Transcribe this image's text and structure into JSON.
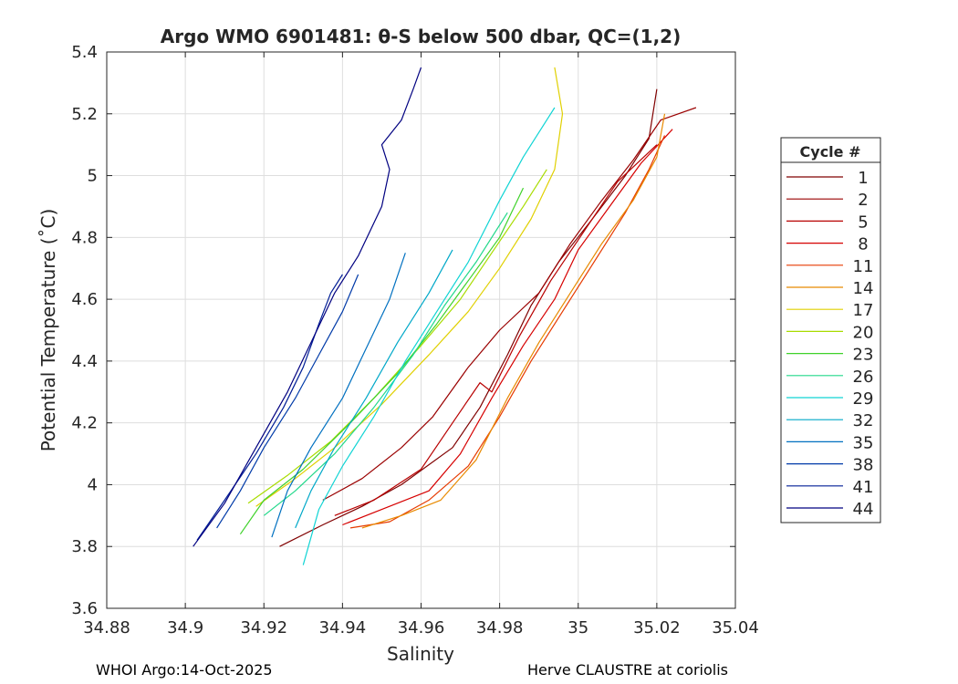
{
  "chart_data": {
    "type": "line",
    "title": "Argo WMO 6901481: θ-S below 500 dbar,  QC=(1,2)",
    "xlabel": "Salinity",
    "ylabel": "Potential Temperature (˚C)",
    "xlim": [
      34.88,
      35.04
    ],
    "ylim": [
      3.6,
      5.4
    ],
    "xticks": [
      34.88,
      34.9,
      34.92,
      34.94,
      34.96,
      34.98,
      35,
      35.02,
      35.04
    ],
    "xtick_labels": [
      "34.88",
      "34.9",
      "34.92",
      "34.94",
      "34.96",
      "34.98",
      "35",
      "35.02",
      "35.04"
    ],
    "yticks": [
      3.6,
      3.8,
      4,
      4.2,
      4.4,
      4.6,
      4.8,
      5,
      5.2,
      5.4
    ],
    "ytick_labels": [
      "3.6",
      "3.8",
      "4",
      "4.2",
      "4.4",
      "4.6",
      "4.8",
      "5",
      "5.2",
      "5.4"
    ],
    "grid": true,
    "legend_title": "Cycle #",
    "legend_position": "right",
    "series": [
      {
        "name": "1",
        "color": "#800000",
        "points": [
          [
            34.924,
            3.8
          ],
          [
            34.935,
            3.87
          ],
          [
            34.945,
            3.93
          ],
          [
            34.955,
            4.0
          ],
          [
            34.968,
            4.12
          ],
          [
            34.975,
            4.25
          ],
          [
            34.982,
            4.42
          ],
          [
            34.988,
            4.58
          ],
          [
            34.995,
            4.72
          ],
          [
            35.003,
            4.85
          ],
          [
            35.012,
            5.0
          ],
          [
            35.018,
            5.12
          ],
          [
            35.02,
            5.28
          ]
        ]
      },
      {
        "name": "2",
        "color": "#9a0000",
        "points": [
          [
            34.935,
            3.95
          ],
          [
            34.945,
            4.02
          ],
          [
            34.955,
            4.12
          ],
          [
            34.963,
            4.22
          ],
          [
            34.972,
            4.38
          ],
          [
            34.98,
            4.5
          ],
          [
            34.99,
            4.62
          ],
          [
            34.998,
            4.78
          ],
          [
            35.006,
            4.92
          ],
          [
            35.014,
            5.05
          ],
          [
            35.021,
            5.18
          ],
          [
            35.03,
            5.22
          ]
        ]
      },
      {
        "name": "5",
        "color": "#b80000",
        "points": [
          [
            34.938,
            3.9
          ],
          [
            34.948,
            3.95
          ],
          [
            34.96,
            4.05
          ],
          [
            34.968,
            4.2
          ],
          [
            34.975,
            4.33
          ],
          [
            34.978,
            4.3
          ],
          [
            34.985,
            4.48
          ],
          [
            34.993,
            4.66
          ],
          [
            35.002,
            4.83
          ],
          [
            35.01,
            4.98
          ],
          [
            35.02,
            5.1
          ]
        ]
      },
      {
        "name": "8",
        "color": "#d60000",
        "points": [
          [
            34.94,
            3.87
          ],
          [
            34.95,
            3.92
          ],
          [
            34.962,
            3.98
          ],
          [
            34.97,
            4.1
          ],
          [
            34.978,
            4.28
          ],
          [
            34.986,
            4.45
          ],
          [
            34.994,
            4.6
          ],
          [
            35.0,
            4.76
          ],
          [
            35.008,
            4.9
          ],
          [
            35.016,
            5.04
          ],
          [
            35.024,
            5.15
          ]
        ]
      },
      {
        "name": "11",
        "color": "#e63a00",
        "points": [
          [
            34.942,
            3.86
          ],
          [
            34.952,
            3.88
          ],
          [
            34.962,
            3.95
          ],
          [
            34.972,
            4.06
          ],
          [
            34.98,
            4.22
          ],
          [
            34.988,
            4.4
          ],
          [
            34.996,
            4.56
          ],
          [
            35.004,
            4.72
          ],
          [
            35.012,
            4.88
          ],
          [
            35.018,
            5.02
          ],
          [
            35.022,
            5.13
          ]
        ]
      },
      {
        "name": "14",
        "color": "#e88a00",
        "points": [
          [
            34.945,
            3.86
          ],
          [
            34.955,
            3.9
          ],
          [
            34.965,
            3.95
          ],
          [
            34.974,
            4.08
          ],
          [
            34.982,
            4.28
          ],
          [
            34.99,
            4.46
          ],
          [
            34.998,
            4.62
          ],
          [
            35.006,
            4.78
          ],
          [
            35.014,
            4.92
          ],
          [
            35.02,
            5.06
          ],
          [
            35.022,
            5.2
          ]
        ]
      },
      {
        "name": "17",
        "color": "#e0d000",
        "points": [
          [
            34.918,
            3.93
          ],
          [
            34.928,
            4.02
          ],
          [
            34.938,
            4.12
          ],
          [
            34.95,
            4.26
          ],
          [
            34.962,
            4.42
          ],
          [
            34.972,
            4.56
          ],
          [
            34.98,
            4.7
          ],
          [
            34.988,
            4.86
          ],
          [
            34.994,
            5.02
          ],
          [
            34.996,
            5.2
          ],
          [
            34.994,
            5.35
          ]
        ]
      },
      {
        "name": "20",
        "color": "#a8dc00",
        "points": [
          [
            34.916,
            3.94
          ],
          [
            34.926,
            4.03
          ],
          [
            34.937,
            4.14
          ],
          [
            34.948,
            4.28
          ],
          [
            34.96,
            4.45
          ],
          [
            34.97,
            4.6
          ],
          [
            34.978,
            4.75
          ],
          [
            34.986,
            4.9
          ],
          [
            34.992,
            5.02
          ]
        ]
      },
      {
        "name": "23",
        "color": "#3fd22b",
        "points": [
          [
            34.914,
            3.84
          ],
          [
            34.92,
            3.95
          ],
          [
            34.93,
            4.05
          ],
          [
            34.942,
            4.2
          ],
          [
            34.954,
            4.36
          ],
          [
            34.964,
            4.52
          ],
          [
            34.972,
            4.66
          ],
          [
            34.98,
            4.8
          ],
          [
            34.986,
            4.96
          ]
        ]
      },
      {
        "name": "26",
        "color": "#20d88a",
        "points": [
          [
            34.92,
            3.9
          ],
          [
            34.928,
            3.98
          ],
          [
            34.938,
            4.1
          ],
          [
            34.948,
            4.25
          ],
          [
            34.958,
            4.42
          ],
          [
            34.966,
            4.58
          ],
          [
            34.974,
            4.72
          ],
          [
            34.982,
            4.88
          ]
        ]
      },
      {
        "name": "29",
        "color": "#10d4d4",
        "points": [
          [
            34.93,
            3.74
          ],
          [
            34.934,
            3.92
          ],
          [
            34.94,
            4.06
          ],
          [
            34.948,
            4.22
          ],
          [
            34.956,
            4.4
          ],
          [
            34.964,
            4.56
          ],
          [
            34.972,
            4.72
          ],
          [
            34.98,
            4.92
          ],
          [
            34.986,
            5.06
          ],
          [
            34.994,
            5.22
          ]
        ]
      },
      {
        "name": "32",
        "color": "#00a8c8",
        "points": [
          [
            34.928,
            3.86
          ],
          [
            34.932,
            3.98
          ],
          [
            34.938,
            4.12
          ],
          [
            34.946,
            4.28
          ],
          [
            34.954,
            4.46
          ],
          [
            34.962,
            4.62
          ],
          [
            34.968,
            4.76
          ]
        ]
      },
      {
        "name": "35",
        "color": "#0070c0",
        "points": [
          [
            34.922,
            3.83
          ],
          [
            34.926,
            3.98
          ],
          [
            34.932,
            4.12
          ],
          [
            34.94,
            4.28
          ],
          [
            34.946,
            4.44
          ],
          [
            34.952,
            4.6
          ],
          [
            34.956,
            4.75
          ]
        ]
      },
      {
        "name": "38",
        "color": "#003aa8",
        "points": [
          [
            34.908,
            3.86
          ],
          [
            34.914,
            3.98
          ],
          [
            34.92,
            4.12
          ],
          [
            34.928,
            4.28
          ],
          [
            34.934,
            4.42
          ],
          [
            34.94,
            4.56
          ],
          [
            34.944,
            4.68
          ]
        ]
      },
      {
        "name": "41",
        "color": "#001e96",
        "points": [
          [
            34.903,
            3.82
          ],
          [
            34.91,
            3.95
          ],
          [
            34.918,
            4.1
          ],
          [
            34.925,
            4.25
          ],
          [
            34.93,
            4.38
          ],
          [
            34.934,
            4.52
          ],
          [
            34.937,
            4.62
          ],
          [
            34.94,
            4.68
          ]
        ]
      },
      {
        "name": "44",
        "color": "#000080",
        "points": [
          [
            34.902,
            3.8
          ],
          [
            34.91,
            3.94
          ],
          [
            34.918,
            4.12
          ],
          [
            34.926,
            4.3
          ],
          [
            34.932,
            4.46
          ],
          [
            34.938,
            4.62
          ],
          [
            34.944,
            4.74
          ],
          [
            34.95,
            4.9
          ],
          [
            34.952,
            5.02
          ],
          [
            34.95,
            5.1
          ],
          [
            34.955,
            5.18
          ],
          [
            34.958,
            5.28
          ],
          [
            34.96,
            5.35
          ]
        ]
      }
    ]
  },
  "footer": {
    "left": "WHOI Argo:14-Oct-2025",
    "right": "Herve CLAUSTRE at coriolis"
  }
}
